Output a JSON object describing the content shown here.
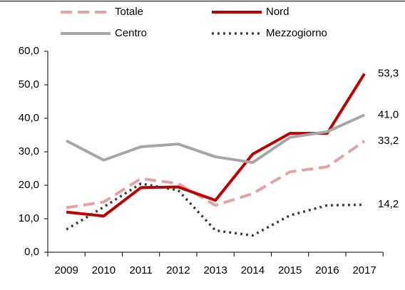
{
  "chart_data": {
    "type": "line",
    "categories": [
      "2009",
      "2010",
      "2011",
      "2012",
      "2013",
      "2014",
      "2015",
      "2016",
      "2017"
    ],
    "series": [
      {
        "name": "Totale",
        "color": "#e4a3a3",
        "style": "dashed",
        "values": [
          13.3,
          15.0,
          22.0,
          20.5,
          14.0,
          17.5,
          24.0,
          25.5,
          33.2
        ],
        "value_labels": [
          null,
          null,
          null,
          null,
          null,
          null,
          null,
          null,
          "33,2"
        ]
      },
      {
        "name": "Nord",
        "color": "#c00000",
        "style": "solid",
        "values": [
          12.0,
          10.8,
          19.3,
          19.5,
          15.5,
          29.3,
          35.5,
          35.5,
          53.3
        ],
        "value_labels": [
          null,
          null,
          null,
          null,
          null,
          null,
          null,
          null,
          "53,3"
        ]
      },
      {
        "name": "Centro",
        "color": "#a6a6a6",
        "style": "solid",
        "values": [
          33.3,
          27.5,
          31.5,
          32.3,
          28.5,
          26.8,
          34.3,
          36.0,
          41.0
        ],
        "value_labels": [
          null,
          null,
          null,
          null,
          null,
          null,
          null,
          null,
          "41,0"
        ]
      },
      {
        "name": "Mezzogiorno",
        "color": "#404040",
        "style": "dotted",
        "values": [
          6.8,
          13.5,
          20.5,
          18.5,
          6.5,
          5.0,
          11.0,
          14.0,
          14.2
        ],
        "value_labels": [
          null,
          null,
          null,
          null,
          null,
          null,
          null,
          null,
          "14,2"
        ]
      }
    ],
    "ylim": [
      0,
      60
    ],
    "yticks": [
      {
        "value": 0,
        "label": "0,0"
      },
      {
        "value": 10,
        "label": "10,0"
      },
      {
        "value": 20,
        "label": "20,0"
      },
      {
        "value": 30,
        "label": "30,0"
      },
      {
        "value": 40,
        "label": "40,0"
      },
      {
        "value": 50,
        "label": "50,0"
      },
      {
        "value": 60,
        "label": "60,0"
      }
    ]
  }
}
